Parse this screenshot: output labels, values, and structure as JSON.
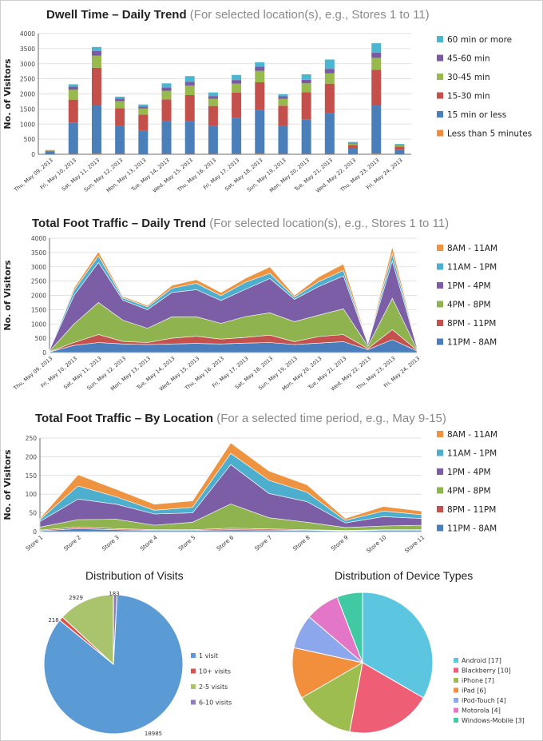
{
  "colors": {
    "ge60": "#4cb6d0",
    "m45_60": "#7a5aa2",
    "m30_45": "#98b94d",
    "m15_30": "#c4504b",
    "le15": "#4a7fba",
    "lt5": "#f08c3a",
    "t8_11": "#ee9440",
    "t11_1": "#4eaecd",
    "t1_4": "#7b5ea5",
    "t4_8": "#8eb34f",
    "t8_11pm": "#c5514e",
    "t11_8": "#4a7dbb",
    "grid": "#d9d9d9",
    "axis": "#444444",
    "visits": [
      "#5b9bd5",
      "#d9534f",
      "#a9c46c",
      "#8f7bbf"
    ],
    "devices": [
      "#5cc6e0",
      "#ee5f76",
      "#9dbd4e",
      "#f18f3c",
      "#8da7ec",
      "#e476c8",
      "#40c9a2"
    ]
  },
  "chart_data": [
    {
      "type": "bar",
      "stacked": true,
      "title": "Dwell Time – Daily Trend",
      "subtitle": "(For selected location(s), e.g., Stores 1 to 11)",
      "ylabel": "No. of Visitors",
      "xlabel": "",
      "ylim": [
        0,
        4000
      ],
      "yticks": [
        0,
        500,
        1000,
        1500,
        2000,
        2500,
        3000,
        3500,
        4000
      ],
      "grid": true,
      "legend": "right",
      "categories": [
        "Thu, May 09, 2013",
        "Fri, May 10, 2013",
        "Sat, May 11, 2013",
        "Sun, May 12, 2013",
        "Mon, May 13, 2013",
        "Tue, May 14, 2013",
        "Wed, May 15, 2013",
        "Thu, May 16, 2013",
        "Fri, May 17, 2013",
        "Sat, May 18, 2013",
        "Sun, May 19, 2013",
        "Mon, May 20, 2013",
        "Tue, May 21, 2013",
        "Wed, May 22, 2013",
        "Thu, May 23, 2013",
        "Fri, May 24, 2013"
      ],
      "series": [
        {
          "name": "Less than 5 minutes",
          "color_key": "lt5",
          "values": [
            5,
            10,
            15,
            10,
            5,
            10,
            10,
            10,
            10,
            15,
            10,
            10,
            10,
            5,
            15,
            5
          ]
        },
        {
          "name": "15 min or less",
          "color_key": "le15",
          "values": [
            80,
            1030,
            1600,
            920,
            780,
            1080,
            1100,
            940,
            1200,
            1450,
            920,
            1150,
            1350,
            180,
            1600,
            150
          ]
        },
        {
          "name": "15-30 min",
          "color_key": "m15_30",
          "values": [
            30,
            770,
            1250,
            600,
            530,
            730,
            850,
            650,
            830,
            920,
            680,
            900,
            980,
            120,
            1180,
            100
          ]
        },
        {
          "name": "30-45 min",
          "color_key": "m30_45",
          "values": [
            15,
            330,
            400,
            230,
            200,
            280,
            320,
            240,
            300,
            380,
            230,
            290,
            340,
            50,
            400,
            40
          ]
        },
        {
          "name": "45-60 min",
          "color_key": "m45_60",
          "values": [
            5,
            100,
            160,
            80,
            70,
            110,
            120,
            90,
            120,
            140,
            80,
            120,
            150,
            25,
            170,
            20
          ]
        },
        {
          "name": "60 min or more",
          "color_key": "ge60",
          "values": [
            5,
            80,
            130,
            70,
            65,
            140,
            190,
            120,
            170,
            145,
            70,
            180,
            310,
            30,
            315,
            25
          ]
        }
      ]
    },
    {
      "type": "area",
      "stacked": true,
      "title": "Total Foot Traffic – Daily Trend",
      "subtitle": "(For selected location(s), e.g., Stores 1 to 11)",
      "ylabel": "No. of Visitors",
      "xlabel": "",
      "ylim": [
        0,
        4000
      ],
      "yticks": [
        0,
        500,
        1000,
        1500,
        2000,
        2500,
        3000,
        3500,
        4000
      ],
      "grid": true,
      "legend": "right",
      "categories": [
        "Thu, May 09, 2013",
        "Fri, May 10, 2013",
        "Sat, May 11, 2013",
        "Sun, May 12, 2013",
        "Mon, May 13, 2013",
        "Tue, May 14, 2013",
        "Wed, May 15, 2013",
        "Thu, May 16, 2013",
        "Fri, May 17, 2013",
        "Sat, May 18, 2013",
        "Sun, May 19, 2013",
        "Mon, May 20, 2013",
        "Tue, May 21, 2013",
        "Wed, May 22, 2013",
        "Thu, May 23, 2013",
        "Fri, May 24, 2013"
      ],
      "series": [
        {
          "name": "11PM - 8AM",
          "color_key": "t11_8",
          "values": [
            20,
            250,
            350,
            300,
            280,
            300,
            320,
            300,
            330,
            350,
            280,
            330,
            380,
            100,
            450,
            60
          ]
        },
        {
          "name": "8PM - 11PM",
          "color_key": "t8_11pm",
          "values": [
            10,
            100,
            280,
            90,
            70,
            200,
            250,
            170,
            200,
            260,
            100,
            230,
            250,
            40,
            350,
            30
          ]
        },
        {
          "name": "4PM - 8PM",
          "color_key": "t4_8",
          "values": [
            20,
            650,
            1120,
            740,
            500,
            750,
            680,
            550,
            730,
            780,
            700,
            750,
            900,
            80,
            1100,
            40
          ]
        },
        {
          "name": "1PM - 4PM",
          "color_key": "t1_4",
          "values": [
            30,
            1000,
            1400,
            700,
            650,
            850,
            950,
            800,
            950,
            1200,
            780,
            1000,
            1150,
            80,
            1300,
            70
          ]
        },
        {
          "name": "11AM - 1PM",
          "color_key": "t11_1",
          "values": [
            15,
            180,
            230,
            80,
            100,
            150,
            220,
            170,
            250,
            180,
            80,
            170,
            190,
            25,
            260,
            25
          ]
        },
        {
          "name": "8AM - 11AM",
          "color_key": "t8_11",
          "values": [
            5,
            80,
            150,
            50,
            50,
            100,
            130,
            110,
            140,
            230,
            60,
            170,
            230,
            25,
            240,
            25
          ]
        }
      ]
    },
    {
      "type": "area",
      "stacked": true,
      "title": "Total Foot Traffic – By Location",
      "subtitle": "(For a selected time period, e.g., May 9-15)",
      "ylabel": "No. of Visitors",
      "xlabel": "",
      "ylim": [
        0,
        250
      ],
      "yticks": [
        0,
        50,
        100,
        150,
        200,
        250
      ],
      "grid": true,
      "legend": "right",
      "categories": [
        "Store 1",
        "Store 2",
        "Store 3",
        "Store 4",
        "Store 5",
        "Store 6",
        "Store 7",
        "Store 8",
        "Store 9",
        "Store 10",
        "Store 11"
      ],
      "series": [
        {
          "name": "11PM - 8AM",
          "color_key": "t11_8",
          "values": [
            2,
            8,
            5,
            3,
            3,
            5,
            4,
            3,
            2,
            3,
            3
          ]
        },
        {
          "name": "8PM - 11PM",
          "color_key": "t8_11pm",
          "values": [
            2,
            4,
            3,
            2,
            2,
            4,
            3,
            2,
            1,
            2,
            2
          ]
        },
        {
          "name": "4PM - 8PM",
          "color_key": "t4_8",
          "values": [
            8,
            20,
            25,
            12,
            20,
            65,
            30,
            20,
            8,
            10,
            12
          ]
        },
        {
          "name": "1PM - 4PM",
          "color_key": "t1_4",
          "values": [
            15,
            55,
            40,
            30,
            25,
            105,
            65,
            55,
            12,
            25,
            18
          ]
        },
        {
          "name": "11AM - 1PM",
          "color_key": "t11_1",
          "values": [
            5,
            35,
            20,
            10,
            15,
            30,
            35,
            25,
            7,
            15,
            10
          ]
        },
        {
          "name": "8AM - 11AM",
          "color_key": "t8_11",
          "values": [
            3,
            30,
            20,
            16,
            17,
            28,
            25,
            20,
            5,
            12,
            10
          ]
        }
      ]
    },
    {
      "type": "pie",
      "title": "Distribution of Visits",
      "legend": "right",
      "labels": [
        "1 visit",
        "10+ visits",
        "2-5 visits",
        "6-10 visits"
      ],
      "values": [
        18985,
        218,
        2929,
        183
      ],
      "data_labels": [
        "18985",
        "218",
        "2929",
        "183"
      ]
    },
    {
      "type": "pie",
      "title": "Distribution of Device Types",
      "legend": "right",
      "labels": [
        "Android [17]",
        "Blackberry [10]",
        "iPhone [7]",
        "iPad [6]",
        "iPod-Touch [4]",
        "Motorola [4]",
        "Windows-Mobile [3]"
      ],
      "values": [
        17,
        10,
        7,
        6,
        4,
        4,
        3
      ]
    }
  ]
}
